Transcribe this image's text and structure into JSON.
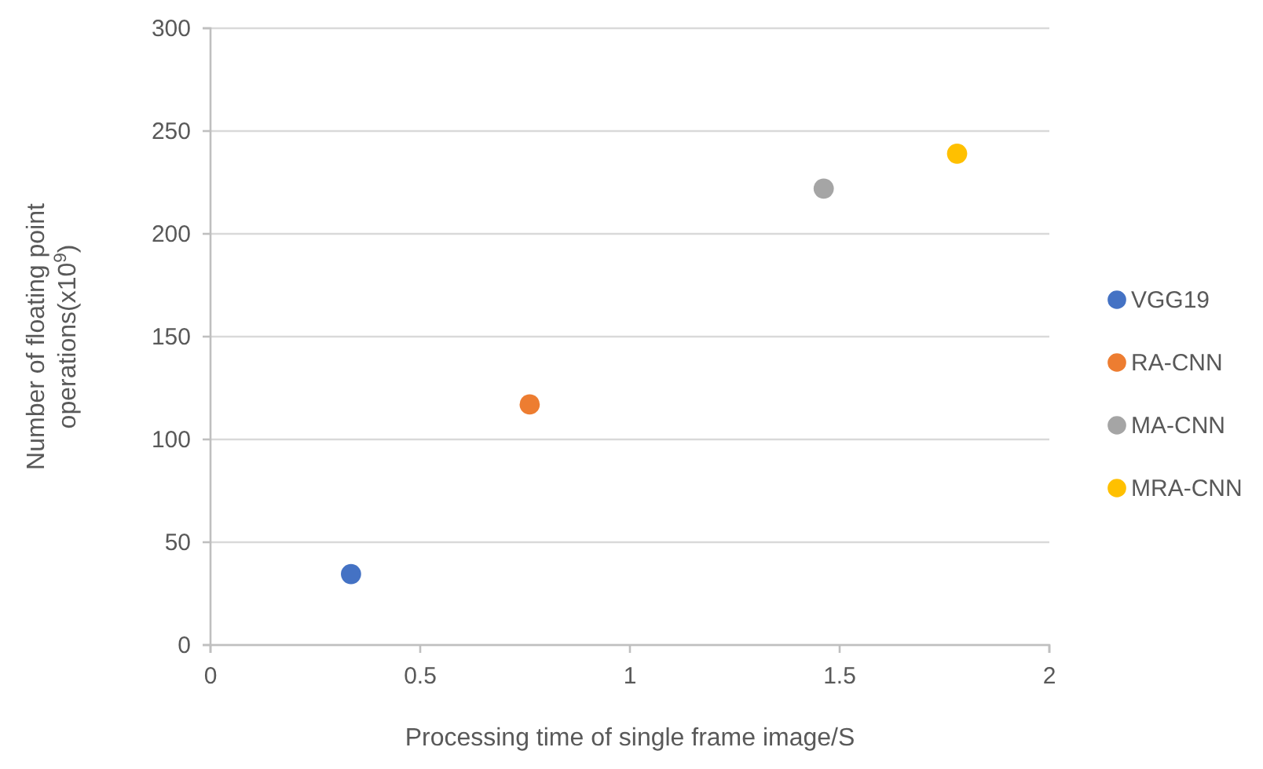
{
  "chart_data": {
    "type": "scatter",
    "xlabel": "Processing time of single frame image/S",
    "ylabel": "Number of floating point operations(x10$^{9}$)",
    "xlim": [
      0,
      2
    ],
    "xticks": [
      0,
      0.5,
      1,
      1.5,
      2
    ],
    "ylim": [
      0,
      300
    ],
    "yticks": [
      0,
      50,
      100,
      150,
      200,
      250,
      300
    ],
    "grid": "y",
    "legend": "right",
    "marker": "circle",
    "series": [
      {
        "name": "VGG19",
        "color": "#4472c4",
        "x": [
          0.335
        ],
        "values": [
          34.5
        ]
      },
      {
        "name": "RA-CNN",
        "color": "#ed7d31",
        "x": [
          0.761
        ],
        "values": [
          117
        ]
      },
      {
        "name": "MA-CNN",
        "color": "#a5a5a5",
        "x": [
          1.462
        ],
        "values": [
          222
        ]
      },
      {
        "name": "MRA-CNN",
        "color": "#ffc000",
        "x": [
          1.78
        ],
        "values": [
          239
        ]
      }
    ]
  }
}
